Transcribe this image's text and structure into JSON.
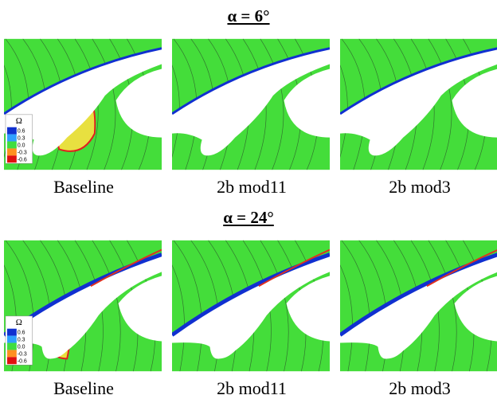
{
  "rows": [
    {
      "title": "α = 6°",
      "panels": [
        {
          "label": "Baseline"
        },
        {
          "label": "2b mod11"
        },
        {
          "label": "2b mod3"
        }
      ]
    },
    {
      "title": "α = 24°",
      "panels": [
        {
          "label": "Baseline"
        },
        {
          "label": "2b mod11"
        },
        {
          "label": "2b mod3"
        }
      ]
    }
  ],
  "legend": {
    "title": "Ω",
    "levels": [
      "0.6",
      "0.3",
      "0.0",
      "-0.3",
      "-0.6"
    ]
  }
}
